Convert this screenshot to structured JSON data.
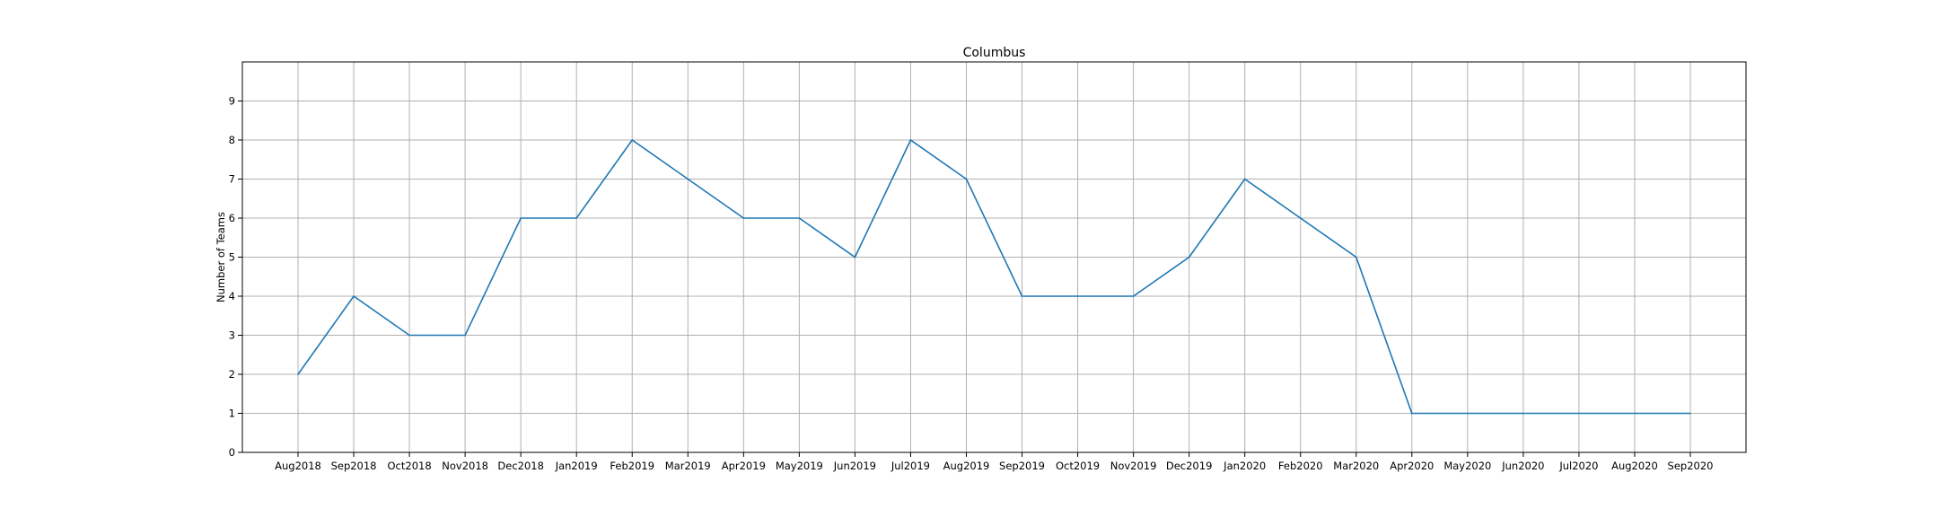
{
  "chart_data": {
    "type": "line",
    "title": "Columbus",
    "xlabel": "",
    "ylabel": "Number of Teams",
    "categories": [
      "Aug2018",
      "Sep2018",
      "Oct2018",
      "Nov2018",
      "Dec2018",
      "Jan2019",
      "Feb2019",
      "Mar2019",
      "Apr2019",
      "May2019",
      "Jun2019",
      "Jul2019",
      "Aug2019",
      "Sep2019",
      "Oct2019",
      "Nov2019",
      "Dec2019",
      "Jan2020",
      "Feb2020",
      "Mar2020",
      "Apr2020",
      "May2020",
      "Jun2020",
      "Jul2020",
      "Aug2020",
      "Sep2020"
    ],
    "series": [
      {
        "values": [
          2,
          4,
          3,
          3,
          6,
          6,
          8,
          7,
          6,
          6,
          5,
          8,
          7,
          4,
          4,
          4,
          5,
          7,
          6,
          5,
          1,
          1,
          1,
          1,
          1,
          1
        ],
        "color": "#1f77b4"
      }
    ],
    "ylim": [
      0,
      10
    ],
    "yticks": [
      0,
      1,
      2,
      3,
      4,
      5,
      6,
      7,
      8,
      9
    ],
    "grid": true,
    "legend": "none"
  }
}
